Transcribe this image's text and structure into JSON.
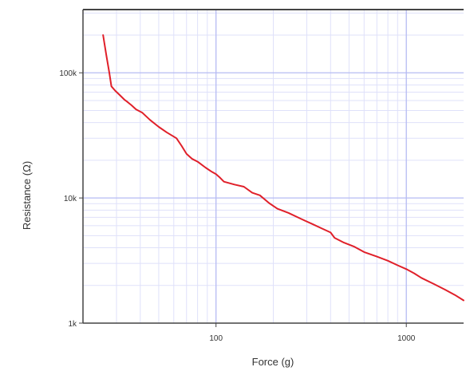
{
  "chart_data": {
    "type": "line",
    "title": "",
    "xlabel": "Force (g)",
    "ylabel": "Resistance (Ω)",
    "x_scale": "log",
    "y_scale": "log",
    "xlim": [
      20,
      2000
    ],
    "ylim": [
      1000,
      320000
    ],
    "x_ticks": [
      {
        "value": 100,
        "label": "100"
      },
      {
        "value": 1000,
        "label": "1000"
      }
    ],
    "y_ticks": [
      {
        "value": 1000,
        "label": "1k"
      },
      {
        "value": 10000,
        "label": "10k"
      },
      {
        "value": 100000,
        "label": "100k"
      }
    ],
    "grid": true,
    "colors": {
      "line": "#e0202a",
      "major_grid": "#b6bbf3",
      "minor_grid": "#dfe1fa",
      "axis": "#444444"
    },
    "series": [
      {
        "x": [
          25.5,
          26.5,
          27.5,
          28.2,
          29.5,
          31,
          33,
          34,
          36,
          38,
          41,
          45,
          50,
          55,
          62,
          66,
          70,
          75,
          80,
          88,
          95,
          100,
          105,
          110,
          125,
          140,
          155,
          170,
          190,
          210,
          240,
          280,
          320,
          360,
          400,
          420,
          470,
          530,
          600,
          700,
          800,
          900,
          1000,
          1100,
          1200,
          1400,
          1600,
          1800,
          2000
        ],
        "y": [
          200000,
          140000,
          100000,
          78000,
          72000,
          67000,
          61000,
          59000,
          55000,
          51000,
          48000,
          42000,
          37000,
          33500,
          30000,
          26000,
          22500,
          20500,
          19500,
          17500,
          16200,
          15500,
          14500,
          13500,
          12800,
          12300,
          11000,
          10500,
          9100,
          8200,
          7600,
          6800,
          6200,
          5700,
          5300,
          4800,
          4400,
          4100,
          3700,
          3400,
          3150,
          2900,
          2700,
          2500,
          2300,
          2050,
          1850,
          1680,
          1520
        ]
      }
    ]
  }
}
